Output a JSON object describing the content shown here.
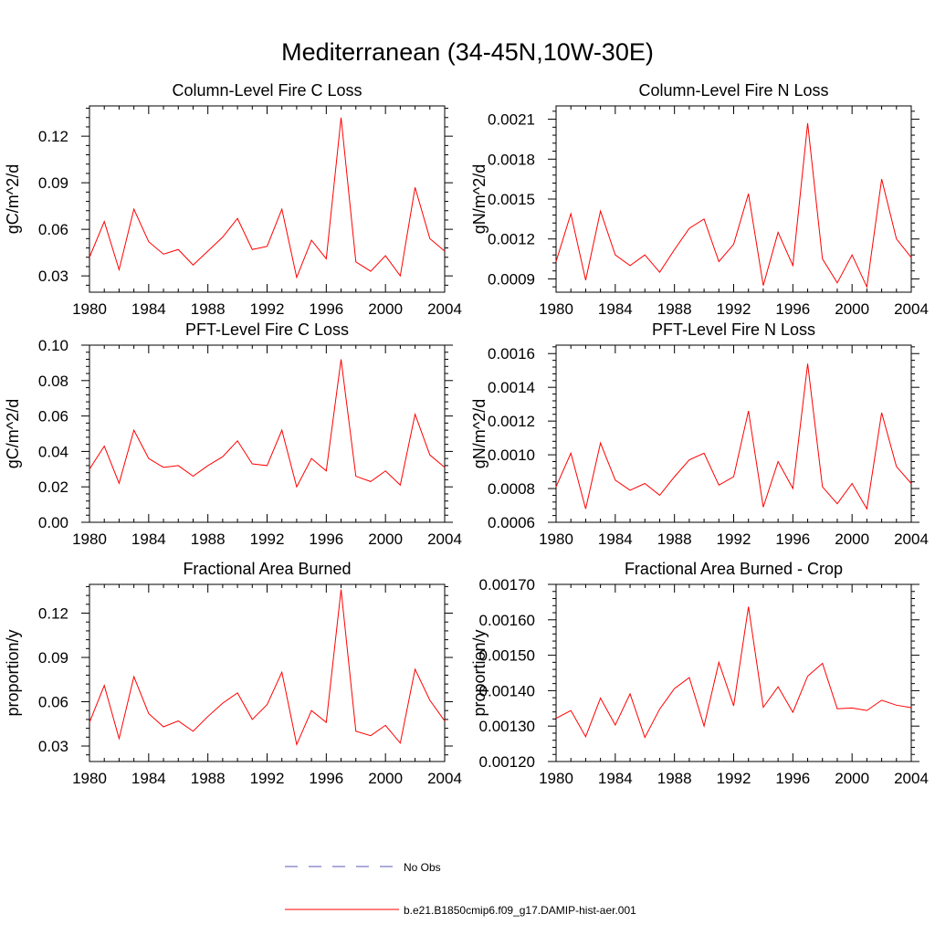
{
  "title": "Mediterranean (34-45N,10W-30E)",
  "legend": {
    "items": [
      {
        "label": "No Obs",
        "color": "#5a5ab4",
        "style": "dashed"
      },
      {
        "label": "b.e21.B1850cmip6.f09_g17.DAMIP-hist-aer.001",
        "color": "#ff0000",
        "style": "solid"
      }
    ]
  },
  "chart_data": [
    {
      "type": "line",
      "title": "Column-Level Fire C Loss",
      "ylabel": "gC/m^2/d",
      "xlim": [
        1980,
        2004
      ],
      "ylim": [
        0.0195,
        0.1395
      ],
      "xticks": [
        1980,
        1984,
        1988,
        1992,
        1996,
        2000,
        2004
      ],
      "yticks": [
        0.03,
        0.06,
        0.09,
        0.12
      ],
      "ytick_labels": [
        "0.03",
        "0.06",
        "0.09",
        "0.12"
      ],
      "x": [
        1980,
        1981,
        1982,
        1983,
        1984,
        1985,
        1986,
        1987,
        1988,
        1989,
        1990,
        1991,
        1992,
        1993,
        1994,
        1995,
        1996,
        1997,
        1998,
        1999,
        2000,
        2001,
        2002,
        2003,
        2004
      ],
      "series": [
        {
          "color": "#ff0000",
          "values": [
            0.042,
            0.065,
            0.034,
            0.073,
            0.052,
            0.044,
            0.047,
            0.037,
            0.046,
            0.055,
            0.067,
            0.047,
            0.049,
            0.073,
            0.029,
            0.053,
            0.041,
            0.132,
            0.039,
            0.033,
            0.043,
            0.03,
            0.087,
            0.054,
            0.046
          ]
        }
      ]
    },
    {
      "type": "line",
      "title": "Column-Level Fire N Loss",
      "ylabel": "gN/m^2/d",
      "xlim": [
        1980,
        2004
      ],
      "ylim": [
        0.0008,
        0.0022
      ],
      "xticks": [
        1980,
        1984,
        1988,
        1992,
        1996,
        2000,
        2004
      ],
      "yticks": [
        0.0009,
        0.0012,
        0.0015,
        0.0018,
        0.0021
      ],
      "ytick_labels": [
        "0.0009",
        "0.0012",
        "0.0015",
        "0.0018",
        "0.0021"
      ],
      "x": [
        1980,
        1981,
        1982,
        1983,
        1984,
        1985,
        1986,
        1987,
        1988,
        1989,
        1990,
        1991,
        1992,
        1993,
        1994,
        1995,
        1996,
        1997,
        1998,
        1999,
        2000,
        2001,
        2002,
        2003,
        2004
      ],
      "series": [
        {
          "color": "#ff0000",
          "values": [
            0.00103,
            0.00139,
            0.00089,
            0.00141,
            0.00108,
            0.001,
            0.00108,
            0.00095,
            0.00112,
            0.00128,
            0.00135,
            0.00103,
            0.00116,
            0.00154,
            0.00085,
            0.00125,
            0.001,
            0.00207,
            0.00105,
            0.00087,
            0.00108,
            0.00084,
            0.00165,
            0.0012,
            0.00106
          ]
        }
      ]
    },
    {
      "type": "line",
      "title": "PFT-Level Fire C Loss",
      "ylabel": "gC/m^2/d",
      "xlim": [
        1980,
        2004
      ],
      "ylim": [
        0.0,
        0.1
      ],
      "xticks": [
        1980,
        1984,
        1988,
        1992,
        1996,
        2000,
        2004
      ],
      "yticks": [
        0.0,
        0.02,
        0.04,
        0.06,
        0.08,
        0.1
      ],
      "ytick_labels": [
        "0.00",
        "0.02",
        "0.04",
        "0.06",
        "0.08",
        "0.10"
      ],
      "x": [
        1980,
        1981,
        1982,
        1983,
        1984,
        1985,
        1986,
        1987,
        1988,
        1989,
        1990,
        1991,
        1992,
        1993,
        1994,
        1995,
        1996,
        1997,
        1998,
        1999,
        2000,
        2001,
        2002,
        2003,
        2004
      ],
      "series": [
        {
          "color": "#ff0000",
          "values": [
            0.03,
            0.043,
            0.022,
            0.052,
            0.036,
            0.031,
            0.032,
            0.026,
            0.032,
            0.037,
            0.046,
            0.033,
            0.032,
            0.052,
            0.02,
            0.036,
            0.029,
            0.092,
            0.026,
            0.023,
            0.029,
            0.021,
            0.061,
            0.038,
            0.031
          ]
        }
      ]
    },
    {
      "type": "line",
      "title": "PFT-Level Fire N Loss",
      "ylabel": "gN/m^2/d",
      "xlim": [
        1980,
        2004
      ],
      "ylim": [
        0.0006,
        0.00165
      ],
      "xticks": [
        1980,
        1984,
        1988,
        1992,
        1996,
        2000,
        2004
      ],
      "yticks": [
        0.0006,
        0.0008,
        0.001,
        0.0012,
        0.0014,
        0.0016
      ],
      "ytick_labels": [
        "0.0006",
        "0.0008",
        "0.0010",
        "0.0012",
        "0.0014",
        "0.0016"
      ],
      "x": [
        1980,
        1981,
        1982,
        1983,
        1984,
        1985,
        1986,
        1987,
        1988,
        1989,
        1990,
        1991,
        1992,
        1993,
        1994,
        1995,
        1996,
        1997,
        1998,
        1999,
        2000,
        2001,
        2002,
        2003,
        2004
      ],
      "series": [
        {
          "color": "#ff0000",
          "values": [
            0.00081,
            0.00101,
            0.00068,
            0.00107,
            0.00085,
            0.00079,
            0.00083,
            0.00076,
            0.00087,
            0.00097,
            0.00101,
            0.00082,
            0.00087,
            0.00126,
            0.00069,
            0.00096,
            0.0008,
            0.00154,
            0.00081,
            0.00071,
            0.00083,
            0.00068,
            0.00125,
            0.00093,
            0.00083
          ]
        }
      ]
    },
    {
      "type": "line",
      "title": "Fractional Area Burned",
      "ylabel": "proportion/y",
      "xlim": [
        1980,
        2004
      ],
      "ylim": [
        0.0195,
        0.1395
      ],
      "xticks": [
        1980,
        1984,
        1988,
        1992,
        1996,
        2000,
        2004
      ],
      "yticks": [
        0.03,
        0.06,
        0.09,
        0.12
      ],
      "ytick_labels": [
        "0.03",
        "0.06",
        "0.09",
        "0.12"
      ],
      "x": [
        1980,
        1981,
        1982,
        1983,
        1984,
        1985,
        1986,
        1987,
        1988,
        1989,
        1990,
        1991,
        1992,
        1993,
        1994,
        1995,
        1996,
        1997,
        1998,
        1999,
        2000,
        2001,
        2002,
        2003,
        2004
      ],
      "series": [
        {
          "color": "#ff0000",
          "values": [
            0.046,
            0.071,
            0.035,
            0.077,
            0.052,
            0.043,
            0.047,
            0.04,
            0.05,
            0.059,
            0.066,
            0.048,
            0.058,
            0.08,
            0.031,
            0.054,
            0.046,
            0.136,
            0.04,
            0.037,
            0.044,
            0.032,
            0.082,
            0.061,
            0.047
          ]
        }
      ]
    },
    {
      "type": "line",
      "title": "Fractional Area Burned - Crop",
      "ylabel": "proportion/y",
      "xlim": [
        1980,
        2004
      ],
      "ylim": [
        0.0012,
        0.0017
      ],
      "xticks": [
        1980,
        1984,
        1988,
        1992,
        1996,
        2000,
        2004
      ],
      "yticks": [
        0.0012,
        0.0013,
        0.0014,
        0.0015,
        0.0016,
        0.0017
      ],
      "ytick_labels": [
        "0.00120",
        "0.00130",
        "0.00140",
        "0.00150",
        "0.00160",
        "0.00170"
      ],
      "x": [
        1980,
        1981,
        1982,
        1983,
        1984,
        1985,
        1986,
        1987,
        1988,
        1989,
        1990,
        1991,
        1992,
        1993,
        1994,
        1995,
        1996,
        1997,
        1998,
        1999,
        2000,
        2001,
        2002,
        2003,
        2004
      ],
      "series": [
        {
          "color": "#ff0000",
          "values": [
            0.001322,
            0.001344,
            0.00127,
            0.001379,
            0.001303,
            0.001391,
            0.001268,
            0.001348,
            0.001406,
            0.001437,
            0.0013,
            0.00148,
            0.001357,
            0.001637,
            0.001353,
            0.001411,
            0.001339,
            0.001441,
            0.001477,
            0.001349,
            0.001351,
            0.001344,
            0.001373,
            0.001359,
            0.001352
          ]
        }
      ]
    }
  ]
}
